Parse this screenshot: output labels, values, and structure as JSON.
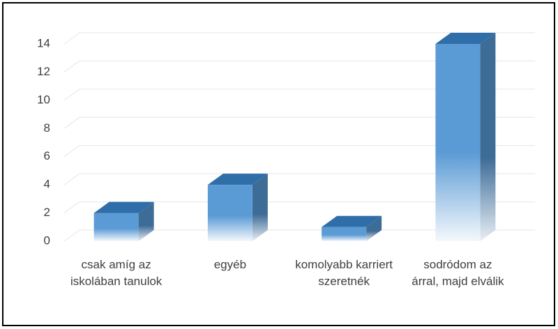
{
  "chart_data": {
    "type": "bar3d",
    "categories": [
      "csak amíg az iskolában tanulok",
      "egyéb",
      "komolyabb karriert szeretnék",
      "sodródom az árral, majd elválik"
    ],
    "values": [
      2,
      4,
      1,
      14
    ],
    "color": "#5b9bd5",
    "ylim": [
      0,
      14
    ],
    "yticks": [
      0,
      2,
      4,
      6,
      8,
      10,
      12,
      14
    ],
    "grid": true
  }
}
